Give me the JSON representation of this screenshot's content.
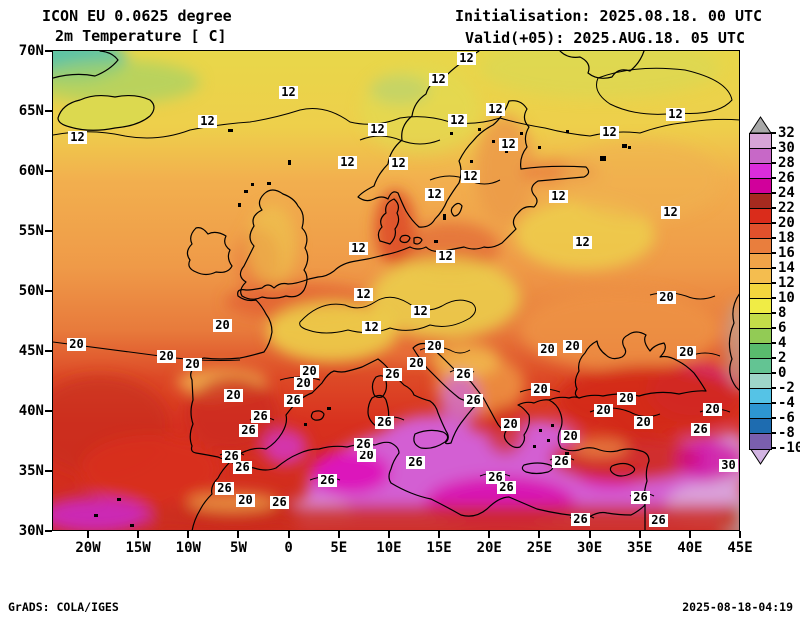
{
  "header": {
    "model_line": "ICON EU 0.0625 degree",
    "variable_line": "2m Temperature [ C]",
    "init_line": "Initialisation: 2025.08.18. 00 UTC",
    "valid_line": "Valid(+05): 2025.AUG.18. 05 UTC"
  },
  "footer": {
    "left": "GrADS: COLA/IGES",
    "right": "2025-08-18-04:19"
  },
  "axes": {
    "lat_labels": [
      "70N",
      "65N",
      "60N",
      "55N",
      "50N",
      "45N",
      "40N",
      "35N",
      "30N"
    ],
    "lon_labels": [
      "20W",
      "15W",
      "10W",
      "5W",
      "0",
      "5E",
      "10E",
      "15E",
      "20E",
      "25E",
      "30E",
      "35E",
      "40E",
      "45E"
    ]
  },
  "colorbar": {
    "labels": [
      "32",
      "30",
      "28",
      "26",
      "24",
      "22",
      "20",
      "18",
      "16",
      "14",
      "12",
      "10",
      "8",
      "6",
      "4",
      "2",
      "0",
      "-2",
      "-4",
      "-6",
      "-8",
      "-10"
    ],
    "segment_colors": [
      "#d7a4d7",
      "#c768c7",
      "#da2dda",
      "#d1009b",
      "#a62a1f",
      "#da2c1b",
      "#e1512c",
      "#e97e3d",
      "#f0a348",
      "#f4bd4f",
      "#f3d53e",
      "#f0ec45",
      "#c3dc49",
      "#92cb55",
      "#59bb6d",
      "#63c493",
      "#9ed6c9",
      "#55c3e6",
      "#2d96d1",
      "#1e6cb0",
      "#7a5fae"
    ],
    "over_color": "#a8a8a8",
    "under_color": "#d2b4e2"
  },
  "chart_data": {
    "type": "heatmap",
    "title": "ICON EU 0.0625 degree",
    "subtitle": "2m Temperature [ C]",
    "units": "C",
    "lon_range": [
      "23.5W",
      "45E"
    ],
    "lat_range": [
      "30N",
      "70N"
    ],
    "scale_boundaries": [
      32,
      30,
      28,
      26,
      24,
      22,
      20,
      18,
      16,
      14,
      12,
      10,
      8,
      6,
      4,
      2,
      0,
      -2,
      -4,
      -6,
      -8,
      -10
    ],
    "scale_colors": [
      "#d7a4d7",
      "#c768c7",
      "#da2dda",
      "#d1009b",
      "#a62a1f",
      "#da2c1b",
      "#e1512c",
      "#e97e3d",
      "#f0a348",
      "#f4bd4f",
      "#f3d53e",
      "#f0ec45",
      "#c3dc49",
      "#92cb55",
      "#59bb6d",
      "#63c493",
      "#9ed6c9",
      "#55c3e6",
      "#2d96d1",
      "#1e6cb0",
      "#7a5fae"
    ],
    "contour_labels": [
      [
        12,
        77,
        138
      ],
      [
        12,
        207,
        122
      ],
      [
        12,
        288,
        93
      ],
      [
        12,
        347,
        163
      ],
      [
        12,
        358,
        249
      ],
      [
        12,
        363,
        295
      ],
      [
        12,
        371,
        328
      ],
      [
        12,
        377,
        130
      ],
      [
        12,
        398,
        164
      ],
      [
        12,
        420,
        312
      ],
      [
        12,
        434,
        195
      ],
      [
        12,
        438,
        80
      ],
      [
        12,
        445,
        257
      ],
      [
        12,
        457,
        121
      ],
      [
        12,
        466,
        59
      ],
      [
        12,
        470,
        177
      ],
      [
        12,
        495,
        110
      ],
      [
        12,
        508,
        145
      ],
      [
        12,
        558,
        197
      ],
      [
        12,
        582,
        243
      ],
      [
        12,
        609,
        133
      ],
      [
        12,
        670,
        213
      ],
      [
        12,
        675,
        115
      ],
      [
        20,
        76,
        345
      ],
      [
        20,
        166,
        357
      ],
      [
        20,
        192,
        365
      ],
      [
        20,
        222,
        326
      ],
      [
        20,
        233,
        396
      ],
      [
        20,
        245,
        501
      ],
      [
        20,
        303,
        384
      ],
      [
        20,
        309,
        372
      ],
      [
        20,
        366,
        456
      ],
      [
        20,
        416,
        364
      ],
      [
        20,
        434,
        347
      ],
      [
        20,
        510,
        425
      ],
      [
        20,
        540,
        390
      ],
      [
        20,
        547,
        350
      ],
      [
        20,
        570,
        437
      ],
      [
        20,
        572,
        347
      ],
      [
        20,
        603,
        411
      ],
      [
        20,
        626,
        399
      ],
      [
        20,
        643,
        423
      ],
      [
        20,
        666,
        298
      ],
      [
        20,
        686,
        353
      ],
      [
        20,
        712,
        410
      ],
      [
        26,
        224,
        489
      ],
      [
        26,
        231,
        457
      ],
      [
        26,
        242,
        468
      ],
      [
        26,
        248,
        431
      ],
      [
        26,
        260,
        417
      ],
      [
        26,
        279,
        503
      ],
      [
        26,
        293,
        401
      ],
      [
        26,
        327,
        481
      ],
      [
        26,
        363,
        445
      ],
      [
        26,
        384,
        423
      ],
      [
        26,
        392,
        375
      ],
      [
        26,
        415,
        463
      ],
      [
        26,
        463,
        375
      ],
      [
        26,
        473,
        401
      ],
      [
        26,
        495,
        478
      ],
      [
        26,
        506,
        488
      ],
      [
        26,
        561,
        462
      ],
      [
        26,
        580,
        520
      ],
      [
        26,
        640,
        498
      ],
      [
        26,
        658,
        521
      ],
      [
        26,
        700,
        430
      ],
      [
        30,
        728,
        466
      ]
    ]
  }
}
